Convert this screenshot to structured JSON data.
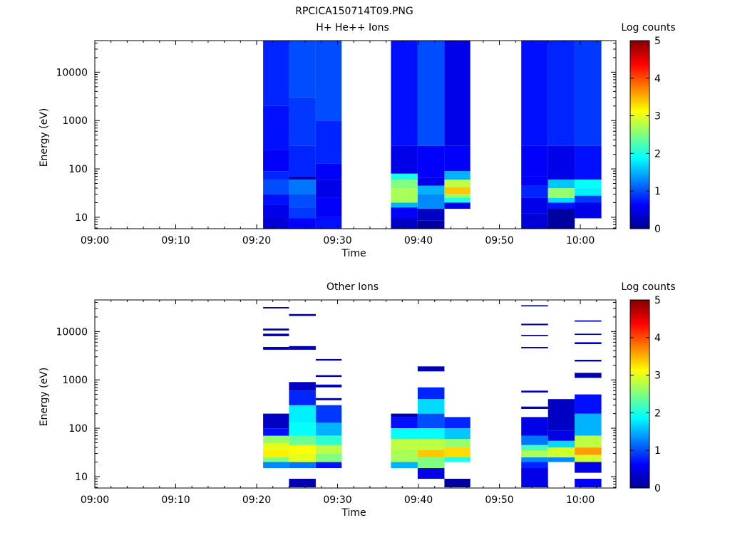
{
  "figure": {
    "title": "RPCICA150714T09.PNG"
  },
  "chart_data": [
    {
      "type": "heatmap",
      "title": "H+ He++ Ions",
      "xlabel": "Time",
      "ylabel": "Energy (eV)",
      "y_scale": "log",
      "ylim": [
        5.8,
        45000
      ],
      "x_ticks": [
        "09:00",
        "09:10",
        "09:20",
        "09:30",
        "09:40",
        "09:50",
        "10:00"
      ],
      "y_ticks": [
        "10",
        "100",
        "1000",
        "10000"
      ],
      "colorbar": {
        "label": "Log counts",
        "range": [
          0,
          5
        ],
        "ticks": [
          "0",
          "1",
          "2",
          "3",
          "4",
          "5"
        ]
      },
      "columns": [
        {
          "start_min": 20.8,
          "end_min": 24.0,
          "bins": [
            [
              5.8,
              9.8,
              0.4
            ],
            [
              9.8,
              18,
              0.5
            ],
            [
              18,
              30,
              0.7
            ],
            [
              30,
              60,
              1.0
            ],
            [
              60,
              90,
              0.8
            ],
            [
              90,
              250,
              0.6
            ],
            [
              250,
              2000,
              0.7
            ],
            [
              2000,
              45000,
              0.8
            ]
          ]
        },
        {
          "start_min": 24.0,
          "end_min": 27.3,
          "bins": [
            [
              5.8,
              9.5,
              0.6
            ],
            [
              9.5,
              16,
              0.9
            ],
            [
              16,
              30,
              1.0
            ],
            [
              30,
              60,
              1.2
            ],
            [
              60,
              70,
              0.2
            ],
            [
              70,
              300,
              0.8
            ],
            [
              300,
              3000,
              0.9
            ],
            [
              3000,
              45000,
              1.0
            ]
          ]
        },
        {
          "start_min": 27.3,
          "end_min": 30.5,
          "bins": [
            [
              5.8,
              10,
              0.7
            ],
            [
              10,
              25,
              0.6
            ],
            [
              25,
              60,
              0.5
            ],
            [
              60,
              130,
              0.6
            ],
            [
              130,
              1000,
              0.8
            ],
            [
              1000,
              45000,
              1.0
            ]
          ]
        },
        {
          "start_min": 36.6,
          "end_min": 39.9,
          "bins": [
            [
              5.8,
              9.5,
              0.3
            ],
            [
              9.5,
              16,
              0.6
            ],
            [
              16,
              20,
              1.5
            ],
            [
              20,
              40,
              2.7
            ],
            [
              40,
              60,
              2.5
            ],
            [
              60,
              80,
              2.0
            ],
            [
              80,
              300,
              0.5
            ],
            [
              300,
              45000,
              0.7
            ]
          ]
        },
        {
          "start_min": 39.9,
          "end_min": 43.2,
          "bins": [
            [
              5.8,
              8.5,
              0.1
            ],
            [
              8.5,
              15,
              0.3
            ],
            [
              15,
              30,
              1.3
            ],
            [
              30,
              45,
              1.5
            ],
            [
              45,
              65,
              0.5
            ],
            [
              65,
              300,
              0.6
            ],
            [
              300,
              45000,
              1.0
            ]
          ]
        },
        {
          "start_min": 43.2,
          "end_min": 46.4,
          "bins": [
            [
              15,
              20,
              0.5
            ],
            [
              20,
              25,
              2.0
            ],
            [
              25,
              30,
              2.6
            ],
            [
              30,
              42,
              3.4
            ],
            [
              42,
              60,
              2.8
            ],
            [
              60,
              90,
              1.5
            ],
            [
              90,
              300,
              0.6
            ],
            [
              300,
              45000,
              0.5
            ]
          ]
        },
        {
          "start_min": 52.7,
          "end_min": 56.0,
          "bins": [
            [
              5.8,
              12,
              0.4
            ],
            [
              12,
              25,
              0.5
            ],
            [
              25,
              45,
              0.8
            ],
            [
              45,
              70,
              0.6
            ],
            [
              70,
              300,
              0.6
            ],
            [
              300,
              45000,
              0.7
            ]
          ]
        },
        {
          "start_min": 56.0,
          "end_min": 59.3,
          "bins": [
            [
              5.8,
              15,
              0.1
            ],
            [
              15,
              20,
              0.7
            ],
            [
              20,
              25,
              1.7
            ],
            [
              25,
              40,
              2.6
            ],
            [
              40,
              60,
              1.6
            ],
            [
              60,
              300,
              0.5
            ],
            [
              300,
              45000,
              0.8
            ]
          ]
        },
        {
          "start_min": 59.3,
          "end_min": 62.6,
          "bins": [
            [
              9.5,
              20,
              0.5
            ],
            [
              20,
              28,
              0.9
            ],
            [
              28,
              40,
              1.8
            ],
            [
              40,
              60,
              1.9
            ],
            [
              60,
              300,
              0.7
            ],
            [
              300,
              45000,
              0.9
            ]
          ]
        }
      ]
    },
    {
      "type": "heatmap",
      "title": "Other Ions",
      "xlabel": "Time",
      "ylabel": "Energy (eV)",
      "y_scale": "log",
      "ylim": [
        5.8,
        45000
      ],
      "x_ticks": [
        "09:00",
        "09:10",
        "09:20",
        "09:30",
        "09:40",
        "09:50",
        "10:00"
      ],
      "y_ticks": [
        "10",
        "100",
        "1000",
        "10000"
      ],
      "colorbar": {
        "label": "Log counts",
        "range": [
          0,
          5
        ],
        "ticks": [
          "0",
          "1",
          "2",
          "3",
          "4",
          "5"
        ]
      },
      "columns": [
        {
          "start_min": 20.8,
          "end_min": 24.0,
          "bins": [
            [
              15,
              20,
              1.3
            ],
            [
              20,
              25,
              2.5
            ],
            [
              25,
              35,
              3.2
            ],
            [
              35,
              50,
              3.0
            ],
            [
              50,
              70,
              2.6
            ],
            [
              70,
              100,
              0.7
            ],
            [
              100,
              200,
              0.3
            ],
            [
              4200,
              4800,
              0.2
            ],
            [
              8000,
              9000,
              0.2
            ],
            [
              10500,
              11500,
              0.2
            ],
            [
              30000,
              32000,
              0.2
            ]
          ]
        },
        {
          "start_min": 24.0,
          "end_min": 27.3,
          "bins": [
            [
              6,
              9,
              0.2
            ],
            [
              15,
              20,
              1.2
            ],
            [
              20,
              30,
              3.0
            ],
            [
              30,
              45,
              3.1
            ],
            [
              45,
              70,
              2.4
            ],
            [
              70,
              130,
              1.9
            ],
            [
              130,
              300,
              1.8
            ],
            [
              300,
              600,
              0.8
            ],
            [
              600,
              900,
              0.3
            ],
            [
              4200,
              5000,
              0.2
            ],
            [
              21000,
              23000,
              0.2
            ]
          ]
        },
        {
          "start_min": 27.3,
          "end_min": 30.5,
          "bins": [
            [
              15,
              20,
              0.7
            ],
            [
              20,
              30,
              2.5
            ],
            [
              30,
              45,
              2.8
            ],
            [
              45,
              70,
              2.1
            ],
            [
              70,
              130,
              1.5
            ],
            [
              130,
              300,
              0.9
            ],
            [
              380,
              420,
              0.3
            ],
            [
              700,
              800,
              0.2
            ],
            [
              1150,
              1250,
              0.2
            ],
            [
              2500,
              2700,
              0.2
            ]
          ]
        },
        {
          "start_min": 36.6,
          "end_min": 39.9,
          "bins": [
            [
              15,
              20,
              1.5
            ],
            [
              20,
              35,
              2.7
            ],
            [
              35,
              60,
              2.8
            ],
            [
              60,
              100,
              1.9
            ],
            [
              100,
              170,
              0.7
            ],
            [
              170,
              200,
              0.2
            ]
          ]
        },
        {
          "start_min": 39.9,
          "end_min": 43.2,
          "bins": [
            [
              9,
              15,
              0.5
            ],
            [
              15,
              25,
              2.5
            ],
            [
              25,
              35,
              3.4
            ],
            [
              35,
              60,
              2.8
            ],
            [
              60,
              100,
              1.9
            ],
            [
              100,
              200,
              1.0
            ],
            [
              200,
              400,
              1.7
            ],
            [
              400,
              700,
              0.8
            ],
            [
              1500,
              1900,
              0.2
            ]
          ]
        },
        {
          "start_min": 43.2,
          "end_min": 46.4,
          "bins": [
            [
              6,
              9,
              0.1
            ],
            [
              20,
              25,
              2.0
            ],
            [
              25,
              40,
              3.3
            ],
            [
              40,
              60,
              2.6
            ],
            [
              60,
              100,
              1.6
            ],
            [
              100,
              170,
              0.8
            ]
          ]
        },
        {
          "start_min": 52.7,
          "end_min": 56.0,
          "bins": [
            [
              6,
              15,
              0.5
            ],
            [
              15,
              20,
              0.8
            ],
            [
              20,
              25,
              1.3
            ],
            [
              25,
              35,
              2.7
            ],
            [
              35,
              45,
              2.2
            ],
            [
              45,
              70,
              1.2
            ],
            [
              70,
              170,
              0.5
            ],
            [
              250,
              280,
              0.3
            ],
            [
              550,
              600,
              0.3
            ],
            [
              4500,
              4800,
              0.2
            ],
            [
              8000,
              8500,
              0.2
            ],
            [
              13500,
              14500,
              0.2
            ],
            [
              33000,
              35000,
              0.2
            ]
          ]
        },
        {
          "start_min": 56.0,
          "end_min": 59.3,
          "bins": [
            [
              20,
              25,
              1.3
            ],
            [
              25,
              40,
              2.9
            ],
            [
              40,
              55,
              1.7
            ],
            [
              55,
              90,
              0.5
            ],
            [
              90,
              400,
              0.3
            ]
          ]
        },
        {
          "start_min": 59.3,
          "end_min": 62.6,
          "bins": [
            [
              6,
              9,
              0.6
            ],
            [
              12,
              20,
              0.5
            ],
            [
              20,
              28,
              2.9
            ],
            [
              28,
              40,
              3.6
            ],
            [
              40,
              70,
              2.8
            ],
            [
              70,
              200,
              1.5
            ],
            [
              200,
              500,
              0.7
            ],
            [
              1100,
              1400,
              0.2
            ],
            [
              2400,
              2600,
              0.2
            ],
            [
              5500,
              6000,
              0.2
            ],
            [
              8500,
              9000,
              0.2
            ],
            [
              16000,
              17000,
              0.2
            ]
          ]
        }
      ]
    }
  ]
}
